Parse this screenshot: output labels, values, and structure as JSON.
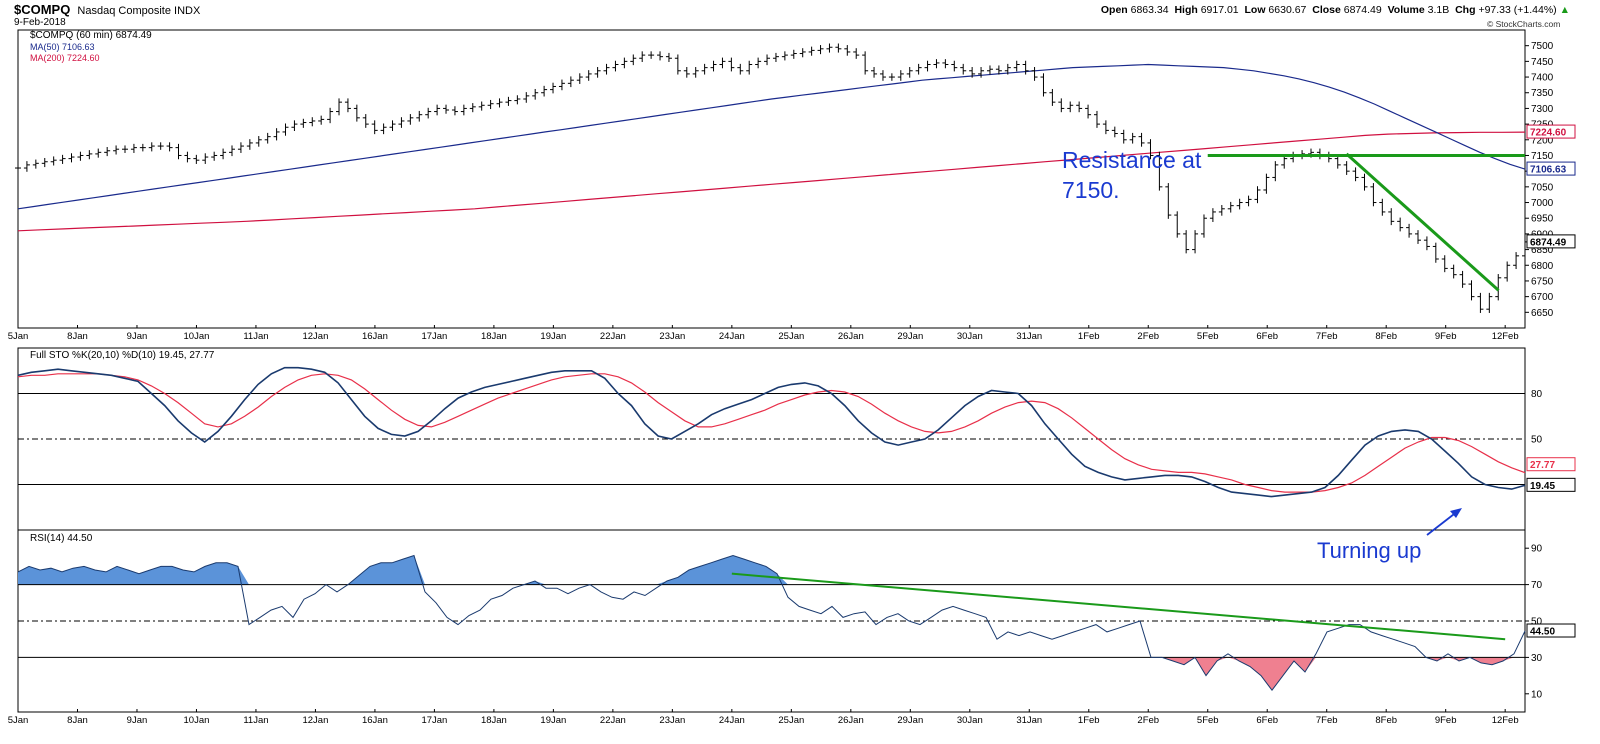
{
  "header": {
    "symbol": "$COMPQ",
    "name": "Nasdaq Composite INDX",
    "date": "9-Feb-2018",
    "open_label": "Open",
    "open": "6863.34",
    "high_label": "High",
    "high": "6917.01",
    "low_label": "Low",
    "low": "6630.67",
    "close_label": "Close",
    "close": "6874.49",
    "volume_label": "Volume",
    "volume": "3.1B",
    "chg_label": "Chg",
    "chg": "+97.33 (+1.44%)",
    "watermark": "© StockCharts.com"
  },
  "colors": {
    "price": "#000000",
    "ma50": "#1a2a8c",
    "ma200": "#d01040",
    "sto_k": "#1a3a6e",
    "sto_d": "#e8304a",
    "rsi_line": "#1a3a6e",
    "rsi_fill_high": "#5b93d9",
    "rsi_fill_low": "#ef8090",
    "trendline": "#1a9a1a",
    "annotation": "#1a3ad0",
    "grid": "#000000"
  },
  "chart_data": [
    {
      "type": "line",
      "name": "price",
      "legend": [
        "$COMPQ (60 min) 6874.49",
        "MA(50) 7106.63",
        "MA(200) 7224.60"
      ],
      "ylim": [
        6600,
        7550
      ],
      "yticks": [
        6650,
        6700,
        6750,
        6800,
        6850,
        6900,
        6950,
        7000,
        7050,
        7100,
        7150,
        7200,
        7250,
        7300,
        7350,
        7400,
        7450,
        7500
      ],
      "ytick_labels": [
        "6650",
        "6700",
        "6750",
        "6800",
        "6850",
        "6900",
        "6950",
        "7000",
        "7050",
        "7100",
        "7150",
        "7200",
        "7250",
        "7300",
        "7350",
        "7400",
        "7450",
        "7500"
      ],
      "x_labels": [
        "5Jan",
        "8Jan",
        "9Jan",
        "10Jan",
        "11Jan",
        "12Jan",
        "16Jan",
        "17Jan",
        "18Jan",
        "19Jan",
        "22Jan",
        "23Jan",
        "24Jan",
        "25Jan",
        "26Jan",
        "29Jan",
        "30Jan",
        "31Jan",
        "1Feb",
        "2Feb",
        "5Feb",
        "6Feb",
        "7Feb",
        "8Feb",
        "9Feb",
        "12Feb"
      ],
      "x_label_index": [
        0,
        9,
        18,
        27,
        36,
        45,
        54,
        63,
        72,
        81,
        90,
        99,
        108,
        117,
        126,
        135,
        144,
        153,
        162,
        171,
        180,
        189,
        198,
        207,
        216,
        225
      ],
      "bars": [
        7110,
        7120,
        7125,
        7130,
        7135,
        7140,
        7145,
        7150,
        7155,
        7160,
        7165,
        7170,
        7170,
        7175,
        7175,
        7180,
        7180,
        7175,
        7150,
        7140,
        7135,
        7145,
        7150,
        7160,
        7170,
        7180,
        7190,
        7200,
        7210,
        7225,
        7240,
        7250,
        7255,
        7260,
        7265,
        7290,
        7320,
        7300,
        7270,
        7250,
        7230,
        7240,
        7250,
        7260,
        7270,
        7280,
        7290,
        7300,
        7295,
        7290,
        7300,
        7305,
        7310,
        7315,
        7320,
        7325,
        7330,
        7340,
        7350,
        7360,
        7370,
        7380,
        7390,
        7400,
        7410,
        7420,
        7430,
        7440,
        7450,
        7460,
        7470,
        7470,
        7465,
        7460,
        7420,
        7410,
        7420,
        7430,
        7440,
        7450,
        7430,
        7420,
        7440,
        7450,
        7460,
        7465,
        7470,
        7475,
        7480,
        7485,
        7490,
        7495,
        7490,
        7480,
        7470,
        7420,
        7410,
        7400,
        7400,
        7410,
        7420,
        7430,
        7440,
        7445,
        7440,
        7430,
        7420,
        7410,
        7420,
        7425,
        7420,
        7430,
        7440,
        7420,
        7400,
        7350,
        7320,
        7300,
        7310,
        7300,
        7280,
        7250,
        7230,
        7220,
        7200,
        7210,
        7190,
        7150,
        7050,
        6960,
        6900,
        6850,
        6900,
        6950,
        6970,
        6980,
        6990,
        7000,
        7010,
        7040,
        7080,
        7120,
        7140,
        7150,
        7155,
        7160,
        7150,
        7140,
        7120,
        7100,
        7080,
        7050,
        7000,
        6970,
        6940,
        6920,
        6900,
        6880,
        6860,
        6820,
        6790,
        6770,
        6740,
        6700,
        6660,
        6700,
        6760,
        6800,
        6830,
        6874.49
      ],
      "ma50": [
        6980,
        6987,
        6994,
        7001,
        7008,
        7015,
        7022,
        7029,
        7036,
        7043,
        7050,
        7057,
        7064,
        7071,
        7078,
        7085,
        7092,
        7099,
        7106,
        7113,
        7120,
        7127,
        7134,
        7141,
        7148,
        7155,
        7162,
        7169,
        7176,
        7183,
        7190,
        7197,
        7204,
        7211,
        7218,
        7225,
        7232,
        7239,
        7246,
        7253,
        7260,
        7267,
        7274,
        7281,
        7288,
        7295,
        7302,
        7309,
        7316,
        7323,
        7330,
        7336,
        7342,
        7348,
        7354,
        7360,
        7366,
        7372,
        7378,
        7384,
        7390,
        7394,
        7398,
        7402,
        7406,
        7410,
        7414,
        7418,
        7422,
        7426,
        7430,
        7432,
        7434,
        7436,
        7438,
        7440,
        7438,
        7436,
        7434,
        7432,
        7430,
        7425,
        7420,
        7412,
        7404,
        7394,
        7382,
        7368,
        7352,
        7334,
        7314,
        7292,
        7270,
        7248,
        7226,
        7204,
        7182,
        7160,
        7140,
        7122,
        7106.63
      ],
      "ma50_x_start": 0,
      "ma200": [
        6910,
        6913,
        6916,
        6919,
        6922,
        6925,
        6928,
        6931,
        6934,
        6937,
        6940,
        6944,
        6948,
        6952,
        6956,
        6960,
        6964,
        6968,
        6972,
        6976,
        6980,
        6986,
        6992,
        6998,
        7004,
        7010,
        7016,
        7022,
        7028,
        7034,
        7040,
        7046,
        7052,
        7058,
        7064,
        7070,
        7076,
        7082,
        7088,
        7094,
        7100,
        7106,
        7112,
        7118,
        7124,
        7130,
        7136,
        7142,
        7148,
        7154,
        7160,
        7166,
        7172,
        7178,
        7184,
        7190,
        7196,
        7202,
        7208,
        7214,
        7218,
        7220,
        7222,
        7223,
        7224,
        7224,
        7224.6
      ],
      "ma200_x_start": 0,
      "resistance": 7150,
      "resistance_x": [
        180,
        228
      ]
    },
    {
      "type": "line",
      "name": "stochastic",
      "legend": "Full STO %K(20,10) %D(10) 19.45, 27.77",
      "ylim": [
        -10,
        110
      ],
      "yticks": [
        80,
        50,
        20
      ],
      "ytick_labels": [
        "80",
        "50",
        "20"
      ],
      "k_values": [
        92,
        94,
        95,
        96,
        95,
        94,
        93,
        92,
        90,
        88,
        80,
        72,
        62,
        54,
        48,
        55,
        65,
        76,
        86,
        93,
        97,
        97,
        96,
        94,
        87,
        76,
        65,
        57,
        53,
        52,
        55,
        62,
        70,
        77,
        81,
        84,
        86,
        88,
        90,
        92,
        94,
        95,
        95,
        95,
        90,
        80,
        72,
        60,
        52,
        50,
        55,
        60,
        66,
        70,
        73,
        76,
        80,
        84,
        86,
        87,
        85,
        80,
        72,
        62,
        54,
        48,
        46,
        48,
        50,
        56,
        64,
        72,
        78,
        82,
        81,
        80,
        72,
        60,
        50,
        40,
        32,
        28,
        25,
        23,
        24,
        25,
        26,
        26,
        25,
        22,
        18,
        15,
        14,
        13,
        12,
        13,
        14,
        15,
        18,
        26,
        36,
        46,
        52,
        55,
        56,
        55,
        50,
        42,
        34,
        25,
        20,
        18,
        17,
        19.45
      ],
      "d_values": [
        91,
        92,
        92,
        93,
        93,
        93,
        93,
        92,
        91,
        89,
        85,
        80,
        74,
        67,
        60,
        58,
        60,
        65,
        71,
        78,
        84,
        89,
        92,
        93,
        92,
        89,
        83,
        76,
        69,
        63,
        59,
        58,
        61,
        65,
        69,
        73,
        77,
        80,
        83,
        86,
        89,
        91,
        92,
        93,
        93,
        91,
        87,
        81,
        74,
        68,
        62,
        58,
        58,
        60,
        63,
        66,
        69,
        73,
        76,
        79,
        81,
        82,
        81,
        78,
        73,
        67,
        62,
        58,
        55,
        54,
        55,
        58,
        62,
        67,
        71,
        74,
        75,
        74,
        70,
        64,
        57,
        50,
        43,
        37,
        33,
        30,
        29,
        28,
        28,
        27,
        25,
        23,
        20,
        18,
        16,
        15,
        15,
        15,
        16,
        18,
        21,
        26,
        32,
        38,
        44,
        48,
        51,
        51,
        49,
        45,
        40,
        35,
        31,
        27.77
      ]
    },
    {
      "type": "area",
      "name": "rsi",
      "legend": "RSI(14) 44.50",
      "ylim": [
        0,
        100
      ],
      "yticks": [
        90,
        70,
        50,
        30,
        10
      ],
      "ytick_labels": [
        "90",
        "70",
        "50",
        "30",
        "10"
      ],
      "ref_lines": [
        70,
        50,
        30
      ],
      "values": [
        77,
        80,
        78,
        79,
        77,
        79,
        80,
        78,
        77,
        80,
        78,
        76,
        78,
        80,
        80,
        78,
        77,
        80,
        82,
        82,
        80,
        48,
        52,
        56,
        58,
        52,
        62,
        65,
        70,
        66,
        70,
        75,
        80,
        82,
        82,
        84,
        86,
        66,
        60,
        52,
        48,
        53,
        56,
        62,
        64,
        68,
        70,
        72,
        68,
        68,
        65,
        68,
        70,
        66,
        63,
        62,
        66,
        64,
        68,
        72,
        74,
        78,
        80,
        82,
        84,
        86,
        84,
        82,
        80,
        76,
        63,
        58,
        56,
        54,
        58,
        52,
        54,
        55,
        48,
        52,
        54,
        50,
        48,
        52,
        56,
        58,
        56,
        54,
        52,
        40,
        44,
        42,
        44,
        42,
        40,
        42,
        44,
        46,
        48,
        44,
        46,
        48,
        50,
        30,
        30,
        28,
        26,
        30,
        20,
        28,
        32,
        28,
        25,
        20,
        12,
        20,
        28,
        22,
        32,
        44,
        46,
        48,
        48,
        44,
        42,
        40,
        38,
        36,
        30,
        28,
        32,
        28,
        30,
        27,
        26,
        28,
        32,
        44.5
      ],
      "trendline": [
        {
          "i": 0,
          "v": 76
        },
        {
          "i": 1,
          "v": 40
        }
      ]
    }
  ],
  "annotations": {
    "resistance_text_1": "Resistance at",
    "resistance_text_2": "7150.",
    "turning_up_text": "Turning up"
  },
  "right_labels": {
    "ma200_value": "7224.60",
    "ma50_value": "7106.63",
    "price_value": "6874.49",
    "sto_d_value": "27.77",
    "sto_k_value": "19.45",
    "rsi_value": "44.50"
  }
}
